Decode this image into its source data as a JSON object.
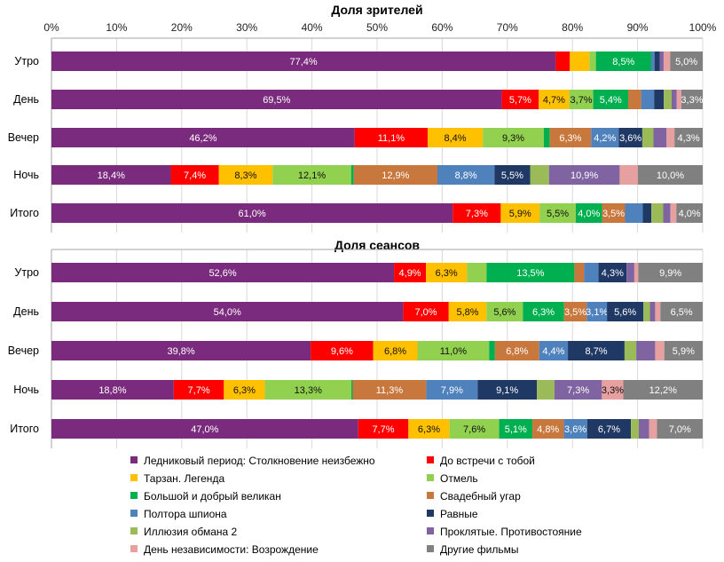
{
  "chart_data": {
    "type": "bar",
    "orientation": "horizontal",
    "stacked": "percent",
    "series_order": [
      "ice_age",
      "bfmtb",
      "tarzan",
      "otmel",
      "bfg",
      "wedding",
      "spy",
      "equals",
      "illusion",
      "cursed",
      "independence",
      "other"
    ],
    "series": [
      {
        "id": "ice_age",
        "name": "Ледниковый период: Столкновение неизбежно",
        "color": "#7B2B7D"
      },
      {
        "id": "bfmtb",
        "name": "До встречи с тобой",
        "color": "#FF0000"
      },
      {
        "id": "tarzan",
        "name": "Тарзан. Легенда",
        "color": "#FFC000"
      },
      {
        "id": "otmel",
        "name": "Отмель",
        "color": "#92D050"
      },
      {
        "id": "bfg",
        "name": "Большой и добрый великан",
        "color": "#00B050"
      },
      {
        "id": "wedding",
        "name": "Свадебный угар",
        "color": "#C8783C"
      },
      {
        "id": "spy",
        "name": "Полтора шпиона",
        "color": "#4F81BD"
      },
      {
        "id": "equals",
        "name": "Равные",
        "color": "#1F3864"
      },
      {
        "id": "illusion",
        "name": "Иллюзия обмана 2",
        "color": "#9BBB59"
      },
      {
        "id": "cursed",
        "name": "Проклятые. Противостояние",
        "color": "#8064A2"
      },
      {
        "id": "independence",
        "name": "День независимости: Возрождение",
        "color": "#E6A0A0"
      },
      {
        "id": "other",
        "name": "Другие фильмы",
        "color": "#808080"
      }
    ],
    "x_ticks": [
      "0%",
      "10%",
      "20%",
      "30%",
      "40%",
      "50%",
      "60%",
      "70%",
      "80%",
      "90%",
      "100%"
    ],
    "xlim": [
      0,
      100
    ],
    "panels": [
      {
        "title": "Доля зрителей",
        "categories": [
          "Утро",
          "День",
          "Вечер",
          "Ночь",
          "Итого"
        ],
        "rows": [
          {
            "category": "Утро",
            "values": [
              77.4,
              2.2,
              3.0,
              1.0,
              8.5,
              0,
              0.5,
              0.8,
              0,
              0.6,
              1.0,
              5.0
            ],
            "labels": [
              "77,4%",
              "",
              "",
              "",
              "8,5%",
              "",
              "",
              "",
              "",
              "",
              "",
              "5,0%"
            ]
          },
          {
            "category": "День",
            "values": [
              69.5,
              5.7,
              4.7,
              3.7,
              5.4,
              2.0,
              2.0,
              1.5,
              1.2,
              0.8,
              0.7,
              3.3
            ],
            "labels": [
              "69,5%",
              "5,7%",
              "4,7%",
              "3,7%",
              "5,4%",
              "",
              "",
              "",
              "",
              "",
              "",
              "3,3%"
            ]
          },
          {
            "category": "Вечер",
            "values": [
              46.2,
              11.1,
              8.4,
              9.3,
              0.9,
              6.3,
              4.2,
              3.6,
              1.7,
              2.0,
              1.2,
              4.3
            ],
            "labels": [
              "46,2%",
              "11,1%",
              "8,4%",
              "9,3%",
              "",
              "6,3%",
              "4,2%",
              "3,6%",
              "",
              "",
              "",
              "4,3%"
            ]
          },
          {
            "category": "Ночь",
            "values": [
              18.4,
              7.4,
              8.3,
              12.1,
              0.4,
              12.9,
              8.8,
              5.5,
              2.9,
              10.9,
              2.8,
              10.0
            ],
            "labels": [
              "18,4%",
              "7,4%",
              "8,3%",
              "12,1%",
              "",
              "12,9%",
              "8,8%",
              "5,5%",
              "",
              "10,9%",
              "",
              "10,0%"
            ]
          },
          {
            "category": "Итого",
            "values": [
              61.0,
              7.3,
              5.9,
              5.5,
              4.0,
              3.5,
              2.7,
              1.3,
              1.8,
              1.1,
              0.9,
              4.0
            ],
            "labels": [
              "61,0%",
              "7,3%",
              "5,9%",
              "5,5%",
              "4,0%",
              "3,5%",
              "",
              "",
              "",
              "",
              "",
              "4,0%"
            ]
          }
        ]
      },
      {
        "title": "Доля сеансов",
        "categories": [
          "Утро",
          "День",
          "Вечер",
          "Ночь",
          "Итого"
        ],
        "rows": [
          {
            "category": "Утро",
            "values": [
              52.6,
              4.9,
              6.3,
              3.0,
              13.5,
              1.5,
              2.2,
              4.3,
              0,
              1.2,
              0.6,
              9.9
            ],
            "labels": [
              "52,6%",
              "4,9%",
              "6,3%",
              "",
              "13,5%",
              "",
              "",
              "4,3%",
              "",
              "",
              "",
              "9,9%"
            ]
          },
          {
            "category": "День",
            "values": [
              54.0,
              7.0,
              5.8,
              5.6,
              6.3,
              3.5,
              3.1,
              5.6,
              1.0,
              0.8,
              0.8,
              6.5
            ],
            "labels": [
              "54,0%",
              "7,0%",
              "5,8%",
              "5,6%",
              "6,3%",
              "3,5%",
              "3,1%",
              "5,6%",
              "",
              "",
              "",
              "6,5%"
            ]
          },
          {
            "category": "Вечер",
            "values": [
              39.8,
              9.6,
              6.8,
              11.0,
              0.9,
              6.8,
              4.4,
              8.7,
              1.8,
              2.9,
              1.4,
              5.9
            ],
            "labels": [
              "39,8%",
              "9,6%",
              "6,8%",
              "11,0%",
              "",
              "6,8%",
              "4,4%",
              "8,7%",
              "",
              "",
              "",
              "5,9%"
            ]
          },
          {
            "category": "Ночь",
            "values": [
              18.8,
              7.7,
              6.3,
              13.3,
              0.2,
              11.3,
              7.9,
              9.1,
              2.7,
              7.3,
              3.3,
              12.2
            ],
            "labels": [
              "18,8%",
              "7,7%",
              "6,3%",
              "13,3%",
              "",
              "11,3%",
              "7,9%",
              "9,1%",
              "",
              "7,3%",
              "3,3%",
              "12,2%"
            ]
          },
          {
            "category": "Итого",
            "values": [
              47.0,
              7.7,
              6.3,
              7.6,
              5.1,
              4.8,
              3.6,
              6.7,
              1.2,
              1.6,
              1.2,
              7.0
            ],
            "labels": [
              "47,0%",
              "7,7%",
              "6,3%",
              "7,6%",
              "5,1%",
              "4,8%",
              "3,6%",
              "6,7%",
              "",
              "",
              "",
              "7,0%"
            ]
          }
        ]
      }
    ],
    "legend": {
      "placement": "bottom",
      "columns": 2,
      "items": [
        {
          "label": "Ледниковый период: Столкновение неизбежно",
          "color": "#7B2B7D"
        },
        {
          "label": "До встречи с тобой",
          "color": "#FF0000"
        },
        {
          "label": "Тарзан. Легенда",
          "color": "#FFC000"
        },
        {
          "label": "Отмель",
          "color": "#92D050"
        },
        {
          "label": "Большой и добрый великан",
          "color": "#00B050"
        },
        {
          "label": "Свадебный угар",
          "color": "#C8783C"
        },
        {
          "label": "Полтора шпиона",
          "color": "#4F81BD"
        },
        {
          "label": "Равные",
          "color": "#1F3864"
        },
        {
          "label": "Иллюзия обмана 2",
          "color": "#9BBB59"
        },
        {
          "label": "Проклятые. Противостояние",
          "color": "#8064A2"
        },
        {
          "label": "День независимости: Возрождение",
          "color": "#E6A0A0"
        },
        {
          "label": "Другие фильмы",
          "color": "#808080"
        }
      ]
    }
  }
}
